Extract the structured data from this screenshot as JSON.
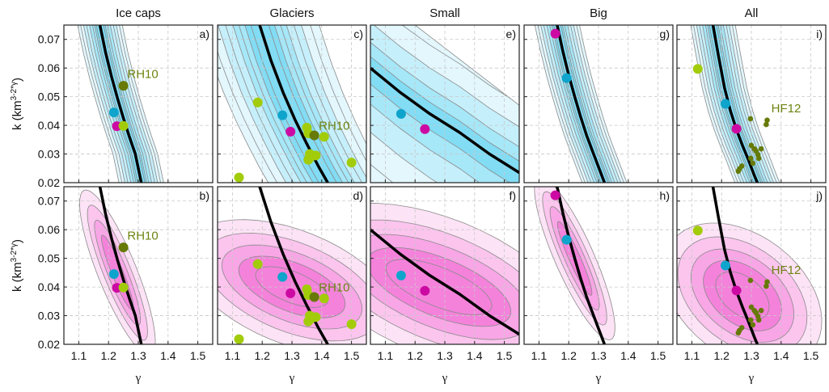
{
  "chart_data": {
    "type": "scatter",
    "layout": "2 rows x 5 columns of small-multiple panels",
    "column_titles": [
      "Ice caps",
      "Glaciers",
      "Small",
      "Big",
      "All"
    ],
    "xlabel": "γ",
    "ylabel": "k (km^(3-2*γ))",
    "ylabel_main": "k (km",
    "ylabel_sup": "3-2*γ",
    "ylabel_end": ")",
    "xlim": [
      1.05,
      1.55
    ],
    "ylim": [
      0.02,
      0.075
    ],
    "xticks": [
      1.1,
      1.2,
      1.3,
      1.4,
      1.5
    ],
    "xtick_labels": [
      "1.1",
      "1.2",
      "1.3",
      "1.4",
      "1.5"
    ],
    "yticks": [
      0.02,
      0.03,
      0.04,
      0.05,
      0.06,
      0.07
    ],
    "ytick_labels": [
      "0.02",
      "0.03",
      "0.04",
      "0.05",
      "0.06",
      "0.07"
    ],
    "grid": true,
    "row_styles": [
      {
        "row": "top",
        "contour_palette": [
          "#e3f7fd",
          "#c5effb",
          "#a6e7f8",
          "#82dcf4"
        ],
        "contour_stroke": "#8a8a8a"
      },
      {
        "row": "bottom",
        "contour_palette": [
          "#fde3f6",
          "#fbc5ee",
          "#f8a6e6",
          "#f482db"
        ],
        "contour_stroke": "#8a8a8a"
      }
    ],
    "marker_colors": {
      "cyan": "#0ea4cc",
      "magenta": "#cc0aa3",
      "lime": "#a2cc0a",
      "olive": "#667a05"
    },
    "annotation_color": "#6d8410",
    "best_fit_curves": {
      "ice_caps": {
        "gamma": [
          1.17,
          1.19,
          1.21,
          1.23,
          1.25,
          1.27,
          1.29,
          1.31
        ],
        "k": [
          0.0755,
          0.0655,
          0.057,
          0.0495,
          0.0425,
          0.036,
          0.03,
          0.02
        ]
      },
      "glaciers": {
        "gamma": [
          1.19,
          1.23,
          1.27,
          1.31,
          1.35,
          1.39,
          1.42
        ],
        "k": [
          0.0755,
          0.0625,
          0.0515,
          0.042,
          0.0335,
          0.0255,
          0.02
        ]
      },
      "small": {
        "gamma": [
          1.05,
          1.15,
          1.25,
          1.35,
          1.45,
          1.55
        ],
        "k": [
          0.06,
          0.0515,
          0.044,
          0.0375,
          0.03,
          0.0235
        ]
      },
      "big": {
        "gamma": [
          1.16,
          1.18,
          1.2,
          1.22,
          1.24,
          1.26,
          1.28,
          1.3,
          1.32
        ],
        "k": [
          0.0755,
          0.066,
          0.0575,
          0.05,
          0.043,
          0.0365,
          0.031,
          0.0255,
          0.02
        ]
      },
      "all": {
        "gamma": [
          1.17,
          1.19,
          1.21,
          1.23,
          1.25,
          1.27,
          1.29,
          1.31,
          1.32
        ],
        "k": [
          0.0755,
          0.064,
          0.053,
          0.045,
          0.0385,
          0.033,
          0.028,
          0.0225,
          0.02
        ]
      }
    },
    "panels": [
      {
        "id": "a",
        "label": "a)",
        "column": "Ice caps",
        "row": "top",
        "curve": "ice_caps",
        "contour": "narrow-band",
        "points": [
          {
            "g": 1.218,
            "k": 0.0445,
            "c": "cyan"
          },
          {
            "g": 1.228,
            "k": 0.0397,
            "c": "magenta"
          },
          {
            "g": 1.25,
            "k": 0.0398,
            "c": "lime"
          },
          {
            "g": 1.25,
            "k": 0.0538,
            "c": "olive"
          }
        ],
        "annotations": [
          {
            "text": "RH10",
            "g": 1.263,
            "k": 0.0565
          }
        ]
      },
      {
        "id": "b",
        "label": "b)",
        "column": "Ice caps",
        "row": "bottom",
        "curve": "ice_caps",
        "contour": "narrow-ellipse",
        "points": [
          {
            "g": 1.218,
            "k": 0.0445,
            "c": "cyan"
          },
          {
            "g": 1.228,
            "k": 0.0397,
            "c": "magenta"
          },
          {
            "g": 1.25,
            "k": 0.0398,
            "c": "lime"
          },
          {
            "g": 1.25,
            "k": 0.0538,
            "c": "olive"
          }
        ],
        "annotations": [
          {
            "text": "RH10",
            "g": 1.263,
            "k": 0.0565
          }
        ]
      },
      {
        "id": "c",
        "label": "c)",
        "column": "Glaciers",
        "row": "top",
        "curve": "glaciers",
        "contour": "wide-band",
        "points": [
          {
            "g": 1.185,
            "k": 0.048,
            "c": "lime"
          },
          {
            "g": 1.122,
            "k": 0.0218,
            "c": "lime"
          },
          {
            "g": 1.5,
            "k": 0.027,
            "c": "lime"
          },
          {
            "g": 1.35,
            "k": 0.0392,
            "c": "lime"
          },
          {
            "g": 1.355,
            "k": 0.0372,
            "c": "lime"
          },
          {
            "g": 1.408,
            "k": 0.036,
            "c": "lime"
          },
          {
            "g": 1.36,
            "k": 0.03,
            "c": "lime"
          },
          {
            "g": 1.38,
            "k": 0.0295,
            "c": "lime"
          },
          {
            "g": 1.355,
            "k": 0.028,
            "c": "lime"
          },
          {
            "g": 1.362,
            "k": 0.0288,
            "c": "lime"
          },
          {
            "g": 1.268,
            "k": 0.0435,
            "c": "cyan"
          },
          {
            "g": 1.295,
            "k": 0.0378,
            "c": "magenta"
          },
          {
            "g": 1.375,
            "k": 0.0365,
            "c": "olive"
          }
        ],
        "annotations": [
          {
            "text": "RH10",
            "g": 1.39,
            "k": 0.0385
          }
        ]
      },
      {
        "id": "d",
        "label": "d)",
        "column": "Glaciers",
        "row": "bottom",
        "curve": "glaciers",
        "contour": "wide-ellipse",
        "points": [
          {
            "g": 1.185,
            "k": 0.048,
            "c": "lime"
          },
          {
            "g": 1.122,
            "k": 0.0218,
            "c": "lime"
          },
          {
            "g": 1.5,
            "k": 0.027,
            "c": "lime"
          },
          {
            "g": 1.35,
            "k": 0.0392,
            "c": "lime"
          },
          {
            "g": 1.355,
            "k": 0.0372,
            "c": "lime"
          },
          {
            "g": 1.408,
            "k": 0.036,
            "c": "lime"
          },
          {
            "g": 1.36,
            "k": 0.03,
            "c": "lime"
          },
          {
            "g": 1.38,
            "k": 0.0295,
            "c": "lime"
          },
          {
            "g": 1.355,
            "k": 0.028,
            "c": "lime"
          },
          {
            "g": 1.362,
            "k": 0.0288,
            "c": "lime"
          },
          {
            "g": 1.268,
            "k": 0.0435,
            "c": "cyan"
          },
          {
            "g": 1.295,
            "k": 0.0378,
            "c": "magenta"
          },
          {
            "g": 1.375,
            "k": 0.0365,
            "c": "olive"
          }
        ],
        "annotations": [
          {
            "text": "RH10",
            "g": 1.39,
            "k": 0.0385
          }
        ]
      },
      {
        "id": "e",
        "label": "e)",
        "column": "Small",
        "row": "top",
        "curve": "small",
        "contour": "broad-band",
        "points": [
          {
            "g": 1.153,
            "k": 0.044,
            "c": "cyan"
          },
          {
            "g": 1.233,
            "k": 0.0387,
            "c": "magenta"
          }
        ],
        "annotations": []
      },
      {
        "id": "f",
        "label": "f)",
        "column": "Small",
        "row": "bottom",
        "curve": "small",
        "contour": "broad-ellipse",
        "points": [
          {
            "g": 1.153,
            "k": 0.044,
            "c": "cyan"
          },
          {
            "g": 1.233,
            "k": 0.0387,
            "c": "magenta"
          }
        ],
        "annotations": []
      },
      {
        "id": "g",
        "label": "g)",
        "column": "Big",
        "row": "top",
        "curve": "big",
        "contour": "narrow-band",
        "points": [
          {
            "g": 1.155,
            "k": 0.072,
            "c": "magenta"
          },
          {
            "g": 1.193,
            "k": 0.0565,
            "c": "cyan"
          }
        ],
        "annotations": []
      },
      {
        "id": "h",
        "label": "h)",
        "column": "Big",
        "row": "bottom",
        "curve": "big",
        "contour": "narrow-ellipse",
        "points": [
          {
            "g": 1.155,
            "k": 0.072,
            "c": "magenta"
          },
          {
            "g": 1.193,
            "k": 0.0565,
            "c": "cyan"
          }
        ],
        "annotations": []
      },
      {
        "id": "i",
        "label": "i)",
        "column": "All",
        "row": "top",
        "curve": "all",
        "contour": "narrow-band",
        "points": [
          {
            "g": 1.12,
            "k": 0.0597,
            "c": "lime"
          },
          {
            "g": 1.213,
            "k": 0.0475,
            "c": "cyan"
          },
          {
            "g": 1.25,
            "k": 0.0388,
            "c": "magenta"
          }
        ],
        "small_points": [
          {
            "g": 1.297,
            "k": 0.0423
          },
          {
            "g": 1.353,
            "k": 0.0418
          },
          {
            "g": 1.35,
            "k": 0.0403
          },
          {
            "g": 1.3,
            "k": 0.033
          },
          {
            "g": 1.31,
            "k": 0.0318
          },
          {
            "g": 1.316,
            "k": 0.031
          },
          {
            "g": 1.333,
            "k": 0.0318
          },
          {
            "g": 1.322,
            "k": 0.0298
          },
          {
            "g": 1.325,
            "k": 0.0285
          },
          {
            "g": 1.298,
            "k": 0.0285
          },
          {
            "g": 1.305,
            "k": 0.0268
          },
          {
            "g": 1.268,
            "k": 0.0258
          },
          {
            "g": 1.26,
            "k": 0.0248
          },
          {
            "g": 1.256,
            "k": 0.024
          }
        ],
        "annotations": [
          {
            "text": "HF12",
            "g": 1.367,
            "k": 0.0445
          }
        ]
      },
      {
        "id": "j",
        "label": "j)",
        "column": "All",
        "row": "bottom",
        "curve": "all",
        "contour": "wide-ellipse-all",
        "points": [
          {
            "g": 1.12,
            "k": 0.0597,
            "c": "lime"
          },
          {
            "g": 1.213,
            "k": 0.0475,
            "c": "cyan"
          },
          {
            "g": 1.25,
            "k": 0.0388,
            "c": "magenta"
          }
        ],
        "small_points": [
          {
            "g": 1.297,
            "k": 0.0423
          },
          {
            "g": 1.353,
            "k": 0.0418
          },
          {
            "g": 1.35,
            "k": 0.0403
          },
          {
            "g": 1.3,
            "k": 0.033
          },
          {
            "g": 1.31,
            "k": 0.0318
          },
          {
            "g": 1.316,
            "k": 0.031
          },
          {
            "g": 1.333,
            "k": 0.0318
          },
          {
            "g": 1.322,
            "k": 0.0298
          },
          {
            "g": 1.325,
            "k": 0.0285
          },
          {
            "g": 1.298,
            "k": 0.0285
          },
          {
            "g": 1.305,
            "k": 0.0268
          },
          {
            "g": 1.268,
            "k": 0.0258
          },
          {
            "g": 1.26,
            "k": 0.0248
          },
          {
            "g": 1.256,
            "k": 0.024
          }
        ],
        "annotations": [
          {
            "text": "HF12",
            "g": 1.367,
            "k": 0.0445
          }
        ]
      }
    ]
  }
}
